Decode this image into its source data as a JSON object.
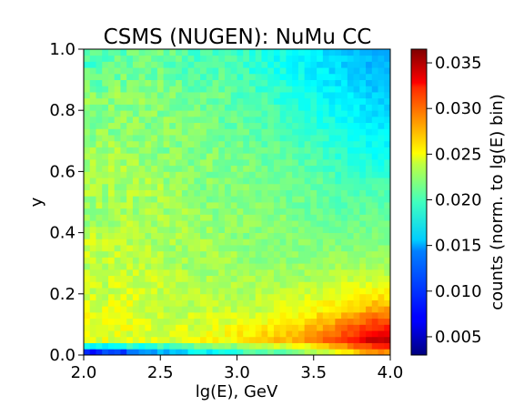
{
  "chart_data": {
    "type": "heatmap",
    "title": "CSMS (NUGEN): NuMu CC",
    "xlabel": "lg(E), GeV",
    "ylabel": "y",
    "xlim": [
      2.0,
      4.0
    ],
    "ylim": [
      0.0,
      1.0
    ],
    "x_ticks": [
      "2.0",
      "2.5",
      "3.0",
      "3.5",
      "4.0"
    ],
    "y_ticks": [
      "0.0",
      "0.2",
      "0.4",
      "0.6",
      "0.8",
      "1.0"
    ],
    "colorbar": {
      "label": "counts (norm. to lg(E) bin)",
      "colormap": "jet",
      "vmin": 0.003,
      "vmax": 0.0365,
      "ticks": [
        "0.005",
        "0.010",
        "0.015",
        "0.020",
        "0.025",
        "0.030",
        "0.035"
      ]
    },
    "bins": {
      "x": 50,
      "y": 50
    },
    "z_grid": {
      "x_centers": [
        2.1,
        2.3,
        2.5,
        2.7,
        2.9,
        3.1,
        3.3,
        3.5,
        3.7,
        3.9
      ],
      "y_centers": [
        0.01,
        0.05,
        0.15,
        0.25,
        0.35,
        0.45,
        0.55,
        0.65,
        0.75,
        0.85,
        0.95
      ],
      "values": [
        [
          0.008,
          0.01,
          0.013,
          0.015,
          0.016,
          0.018,
          0.019,
          0.021,
          0.024,
          0.028
        ],
        [
          0.023,
          0.023,
          0.023,
          0.023,
          0.024,
          0.025,
          0.026,
          0.028,
          0.031,
          0.034
        ],
        [
          0.023,
          0.023,
          0.022,
          0.022,
          0.022,
          0.022,
          0.023,
          0.024,
          0.025,
          0.027
        ],
        [
          0.022,
          0.022,
          0.022,
          0.021,
          0.021,
          0.021,
          0.021,
          0.021,
          0.022,
          0.022
        ],
        [
          0.022,
          0.022,
          0.021,
          0.021,
          0.021,
          0.02,
          0.02,
          0.02,
          0.02,
          0.02
        ],
        [
          0.021,
          0.021,
          0.021,
          0.021,
          0.02,
          0.02,
          0.02,
          0.019,
          0.019,
          0.019
        ],
        [
          0.021,
          0.021,
          0.021,
          0.02,
          0.02,
          0.02,
          0.019,
          0.019,
          0.018,
          0.018
        ],
        [
          0.021,
          0.021,
          0.02,
          0.02,
          0.02,
          0.019,
          0.019,
          0.018,
          0.017,
          0.016
        ],
        [
          0.02,
          0.02,
          0.02,
          0.02,
          0.019,
          0.019,
          0.018,
          0.017,
          0.016,
          0.015
        ],
        [
          0.02,
          0.02,
          0.02,
          0.019,
          0.019,
          0.018,
          0.017,
          0.016,
          0.015,
          0.014
        ],
        [
          0.018,
          0.019,
          0.019,
          0.018,
          0.018,
          0.017,
          0.016,
          0.015,
          0.014,
          0.013
        ]
      ]
    }
  }
}
